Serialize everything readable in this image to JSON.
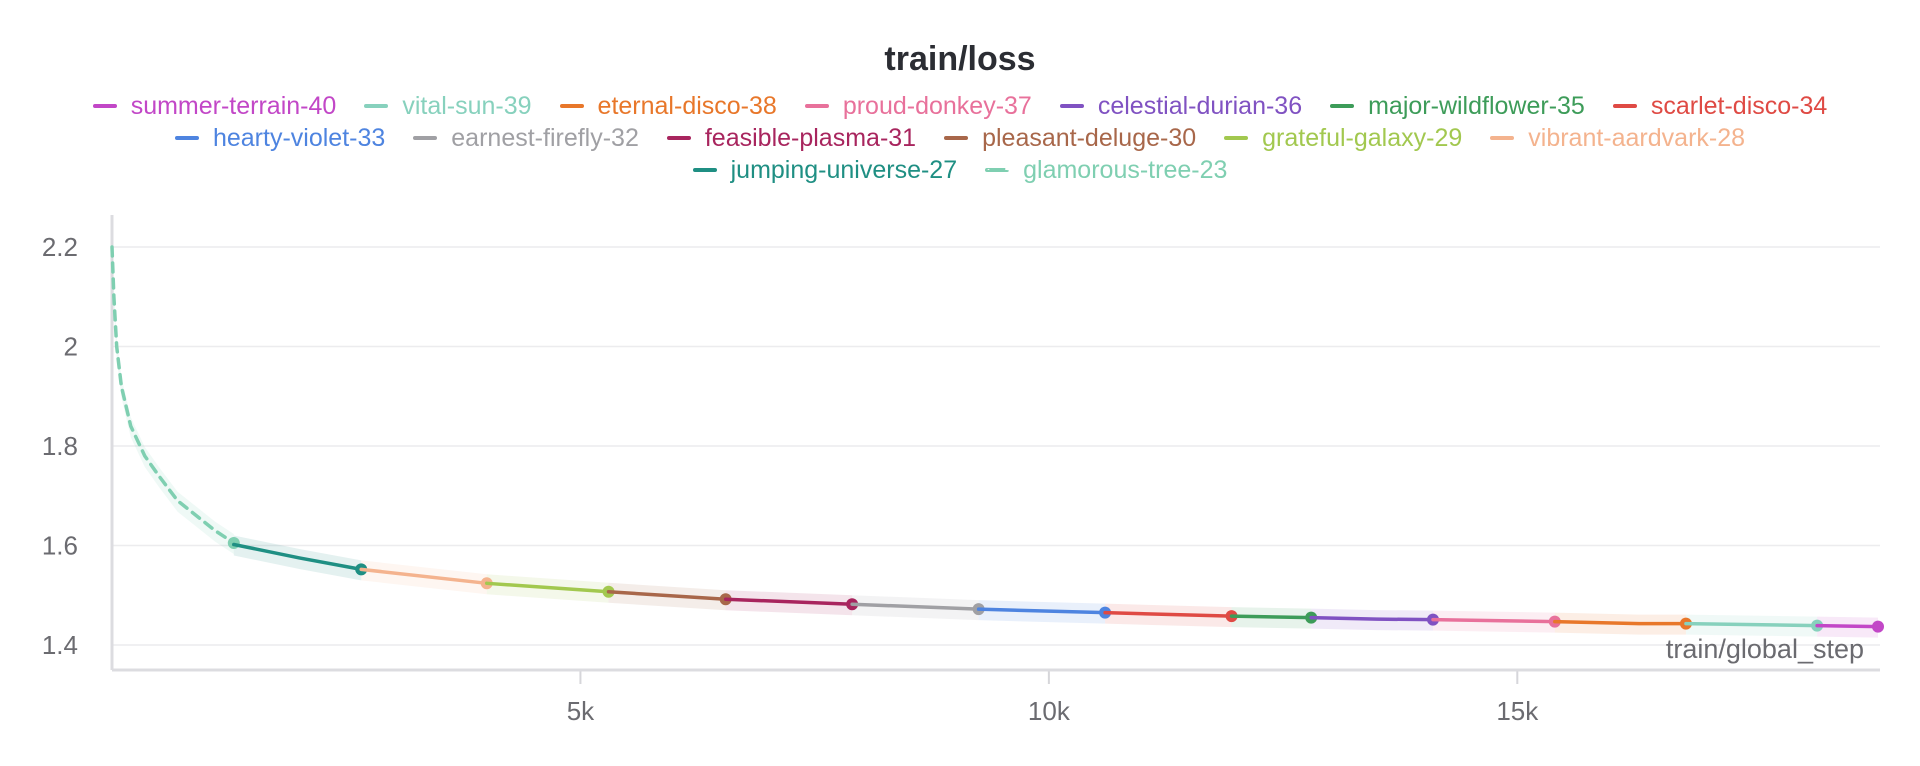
{
  "chart_data": {
    "type": "line",
    "title": "train/loss",
    "xlabel": "train/global_step",
    "ylabel": "",
    "xlim": [
      0,
      18850
    ],
    "ylim": [
      1.35,
      2.28
    ],
    "x_ticks": [
      5000,
      10000,
      15000
    ],
    "x_tick_labels": [
      "5k",
      "10k",
      "15k"
    ],
    "y_ticks": [
      1.4,
      1.6,
      1.8,
      2.0,
      2.2
    ],
    "y_tick_labels": [
      "1.4",
      "1.6",
      "1.8",
      "2",
      "2.2"
    ],
    "grid": true,
    "legend": "top-center",
    "series": [
      {
        "name": "summer-terrain-40",
        "color": "#c247c7",
        "x": [
          18200,
          18850
        ],
        "y": [
          1.439,
          1.437
        ]
      },
      {
        "name": "vital-sun-39",
        "color": "#87d1bd",
        "x": [
          16800,
          18200
        ],
        "y": [
          1.443,
          1.439
        ]
      },
      {
        "name": "eternal-disco-38",
        "color": "#e8772a",
        "x": [
          15400,
          16300,
          16800
        ],
        "y": [
          1.447,
          1.443,
          1.443
        ]
      },
      {
        "name": "proud-donkey-37",
        "color": "#e8719b",
        "x": [
          14100,
          15400
        ],
        "y": [
          1.451,
          1.447
        ]
      },
      {
        "name": "celestial-durian-36",
        "color": "#8052c2",
        "x": [
          12800,
          13500,
          14100
        ],
        "y": [
          1.455,
          1.452,
          1.451
        ]
      },
      {
        "name": "major-wildflower-35",
        "color": "#3d9c59",
        "x": [
          11950,
          12800
        ],
        "y": [
          1.458,
          1.455
        ]
      },
      {
        "name": "scarlet-disco-34",
        "color": "#df4a44",
        "x": [
          10600,
          11950
        ],
        "y": [
          1.465,
          1.458
        ]
      },
      {
        "name": "hearty-violet-33",
        "color": "#4e84e0",
        "x": [
          9250,
          10600
        ],
        "y": [
          1.472,
          1.465
        ]
      },
      {
        "name": "earnest-firefly-32",
        "color": "#a0a0a4",
        "x": [
          7900,
          9250
        ],
        "y": [
          1.482,
          1.472
        ]
      },
      {
        "name": "feasible-plasma-31",
        "color": "#a8255e",
        "x": [
          6550,
          7900
        ],
        "y": [
          1.492,
          1.482
        ]
      },
      {
        "name": "pleasant-deluge-30",
        "color": "#a8674a",
        "x": [
          5300,
          6550
        ],
        "y": [
          1.507,
          1.492
        ]
      },
      {
        "name": "grateful-galaxy-29",
        "color": "#a2c84f",
        "x": [
          4000,
          5300
        ],
        "y": [
          1.524,
          1.507
        ]
      },
      {
        "name": "vibrant-aardvark-28",
        "color": "#f4b38e",
        "x": [
          2660,
          4000
        ],
        "y": [
          1.552,
          1.524
        ]
      },
      {
        "name": "jumping-universe-27",
        "color": "#1f8f83",
        "x": [
          1300,
          2000,
          2660
        ],
        "y": [
          1.602,
          1.575,
          1.552
        ]
      },
      {
        "name": "glamorous-tree-23",
        "color": "#7fcfb1",
        "dashed": true,
        "x": [
          0,
          20,
          50,
          100,
          200,
          350,
          500,
          700,
          900,
          1100,
          1300
        ],
        "y": [
          2.2,
          2.1,
          2.0,
          1.92,
          1.84,
          1.78,
          1.74,
          1.69,
          1.66,
          1.63,
          1.605
        ]
      }
    ]
  }
}
